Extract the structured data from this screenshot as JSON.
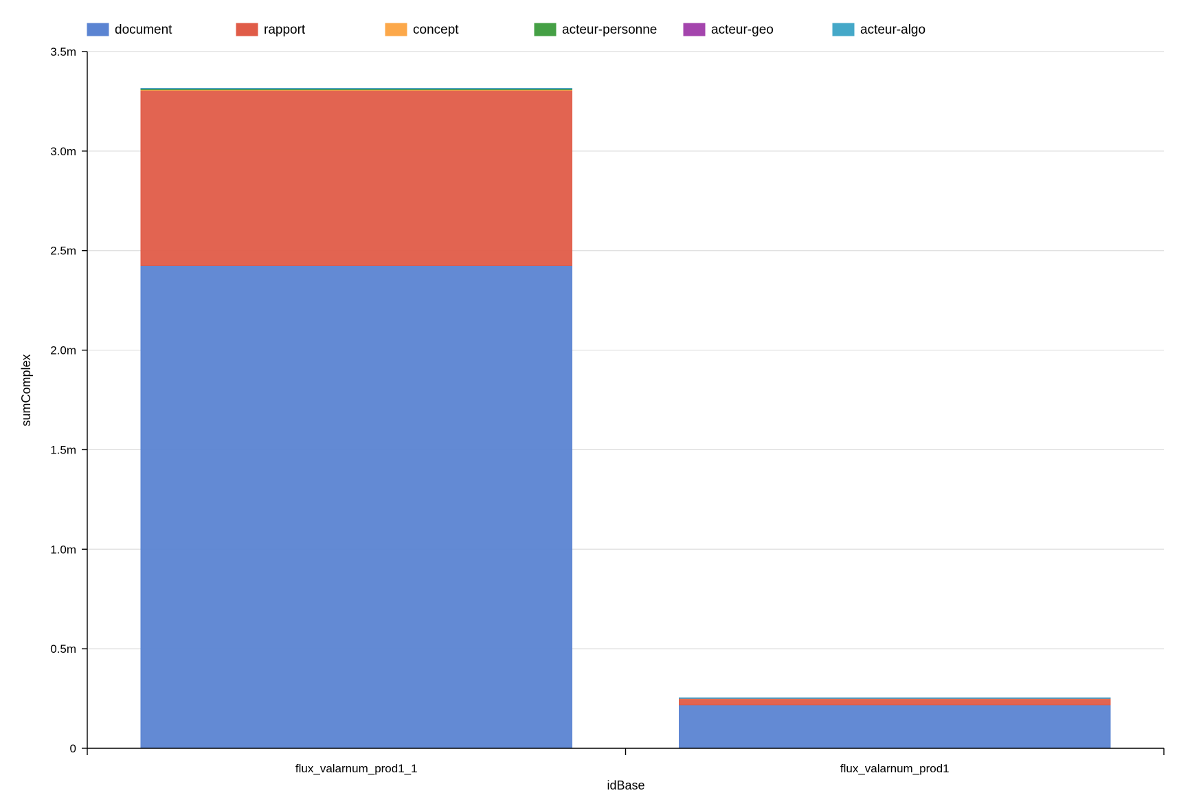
{
  "chart_data": {
    "type": "bar",
    "stacked": true,
    "title": "",
    "xlabel": "idBase",
    "ylabel": "sumComplex",
    "ylim": [
      0,
      3500000
    ],
    "yticks": [
      {
        "value": 0,
        "label": "0"
      },
      {
        "value": 500000,
        "label": "0.5m"
      },
      {
        "value": 1000000,
        "label": "1.0m"
      },
      {
        "value": 1500000,
        "label": "1.5m"
      },
      {
        "value": 2000000,
        "label": "2.0m"
      },
      {
        "value": 2500000,
        "label": "2.5m"
      },
      {
        "value": 3000000,
        "label": "3.0m"
      },
      {
        "value": 3500000,
        "label": "3.5m"
      }
    ],
    "grid": true,
    "legend_position": "top",
    "categories": [
      "flux_valarnum_prod1_1",
      "flux_valarnum_prod1"
    ],
    "series": [
      {
        "name": "document",
        "color": "#5b84d2",
        "values": [
          2425000,
          218000
        ]
      },
      {
        "name": "rapport",
        "color": "#e05c48",
        "values": [
          880000,
          32000
        ]
      },
      {
        "name": "concept",
        "color": "#fca84a",
        "values": [
          3000,
          1000
        ]
      },
      {
        "name": "acteur-personne",
        "color": "#45a045",
        "values": [
          5000,
          1000
        ]
      },
      {
        "name": "acteur-geo",
        "color": "#a445ad",
        "values": [
          1500,
          500
        ]
      },
      {
        "name": "acteur-algo",
        "color": "#45a8c8",
        "values": [
          1000,
          500
        ]
      }
    ]
  }
}
